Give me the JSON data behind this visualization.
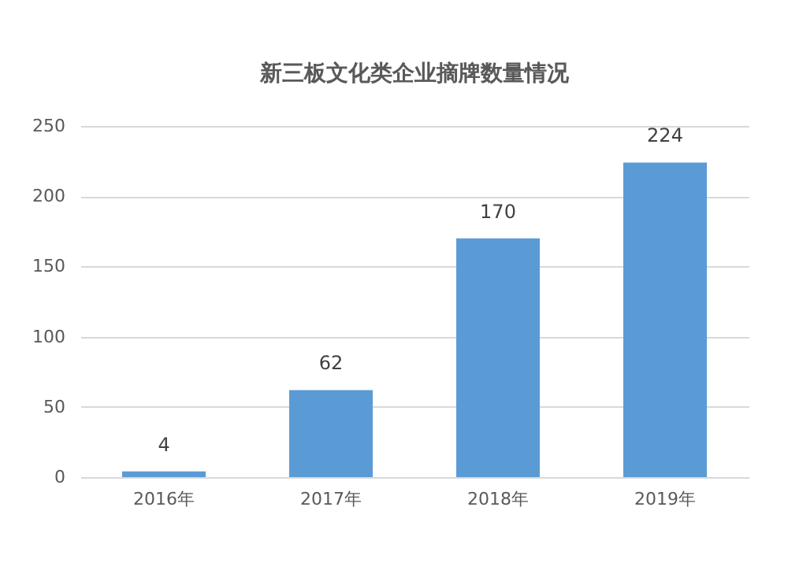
{
  "chart_data": {
    "type": "bar",
    "title": "新三板文化类企业摘牌数量情况",
    "categories": [
      "2016年",
      "2017年",
      "2018年",
      "2019年"
    ],
    "values": [
      4,
      62,
      170,
      224
    ],
    "color": "#5b9bd5",
    "ylim": [
      0,
      250
    ],
    "yticks": [
      0,
      50,
      100,
      150,
      200,
      250
    ],
    "grid": "y",
    "data_labels": true
  }
}
